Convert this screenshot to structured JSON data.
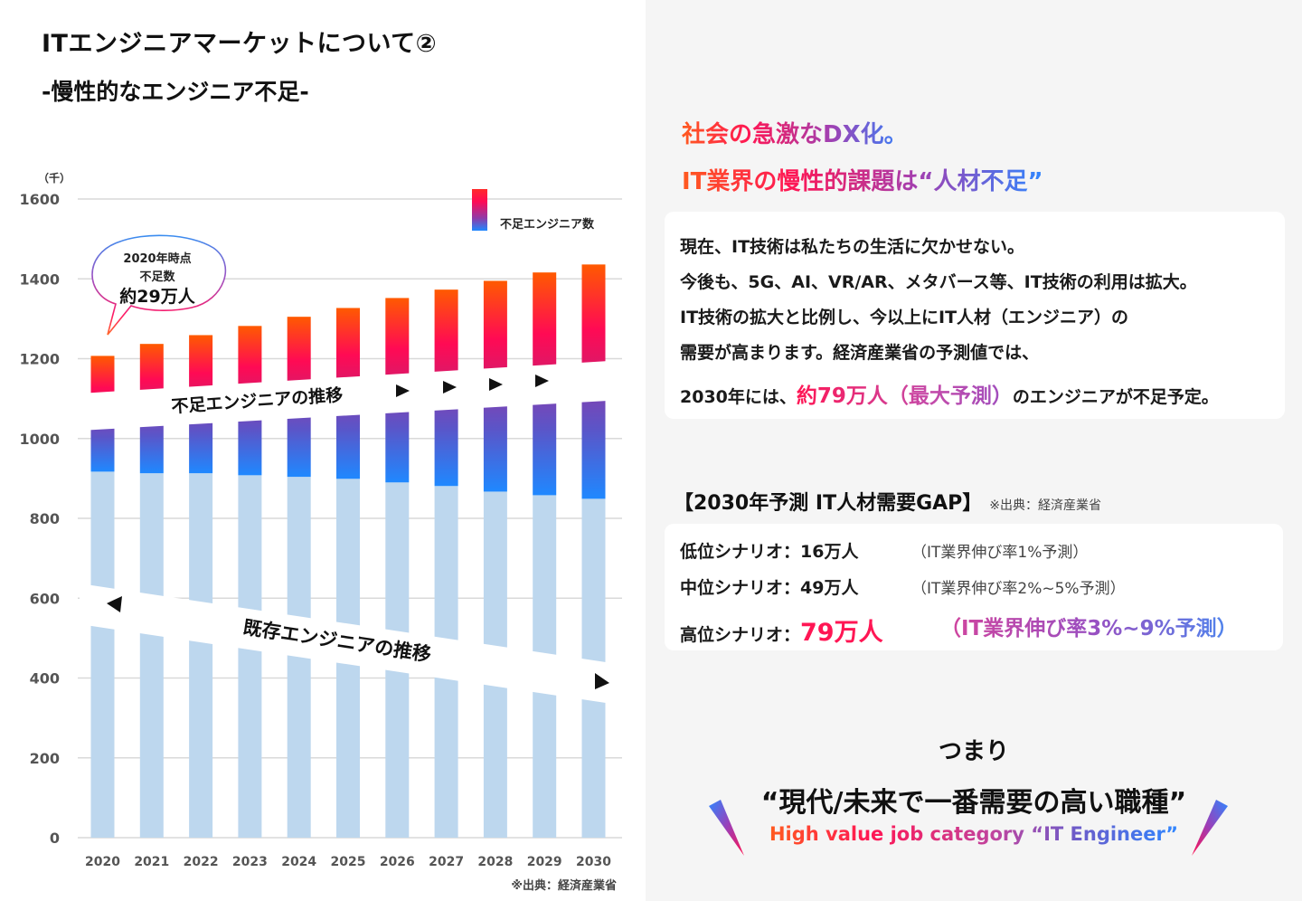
{
  "left": {
    "title": "ITエンジニアマーケットについて②",
    "subtitle": "-慢性的なエンジニア不足-"
  },
  "chart_data": {
    "type": "bar",
    "stacked": true,
    "unit_label": "（千）",
    "categories": [
      "2020",
      "2021",
      "2022",
      "2023",
      "2024",
      "2025",
      "2026",
      "2027",
      "2028",
      "2029",
      "2030"
    ],
    "series": [
      {
        "name": "既存エンジニア",
        "values": [
          917,
          913,
          913,
          908,
          904,
          899,
          890,
          881,
          867,
          858,
          849
        ],
        "color": "#bdd7ee"
      },
      {
        "name": "不足エンジニア数",
        "values": [
          290,
          324,
          346,
          374,
          401,
          428,
          462,
          492,
          528,
          558,
          587
        ],
        "color_gradient": [
          "#ff5a00",
          "#ff0a54",
          "#8f3aa8",
          "#1f88ff"
        ]
      }
    ],
    "ylim": [
      0,
      1600
    ],
    "yticks": [
      "0",
      "200",
      "400",
      "600",
      "800",
      "1000",
      "1200",
      "1400",
      "1600"
    ],
    "grid": true,
    "legend": {
      "label": "不足エンジニア数",
      "position": "top-right"
    },
    "annotations": {
      "callout": [
        "2020年時点",
        "不足数",
        "約29万人"
      ],
      "shortage_trend": "不足エンジニアの推移",
      "existing_trend": "既存エンジニアの推移"
    },
    "source": "※出典：経済産業省",
    "colors": {
      "existing": "#bdd7ee",
      "red_top": "#ff5a00",
      "red_mid": "#ff0a54",
      "purple": "#8f3aa8",
      "blue": "#1f88ff",
      "grid": "#d9d9d9"
    }
  },
  "right": {
    "headline_1": "社会の急激なDX化。",
    "headline_2": "IT業界の慢性的課題は“人材不足”",
    "card_lines": [
      "現在、IT技術は私たちの生活に欠かせない。",
      "今後も、5G、AI、VR/AR、メタバース等、IT技術の利用は拡大。",
      "IT技術の拡大と比例し、今以上にIT人材（エンジニア）の",
      "需要が高まります。経済産業省の予測値では、"
    ],
    "last_line_prefix": "2030年には、",
    "last_line_highlight": "約79万人（最大予測）",
    "last_line_suffix": "のエンジニアが不足予定。",
    "gap_title": "【2030年予測 IT人材需要GAP】",
    "gap_source": "※出典：経済産業省",
    "scenarios": [
      {
        "label": "低位シナリオ：",
        "value": "16万人",
        "note": "（IT業界伸び率1%予測）"
      },
      {
        "label": "中位シナリオ：",
        "value": "49万人",
        "note": "（IT業界伸び率2%~5%予測）"
      },
      {
        "label": "高位シナリオ：",
        "value": "79万人",
        "note": "（IT業界伸び率3%~9%予測）"
      }
    ],
    "tsumari": "つまり",
    "conclusion": "“現代/未来で一番需要の高い職種”",
    "conclusion_en": "High value job category “IT Engineer”"
  }
}
